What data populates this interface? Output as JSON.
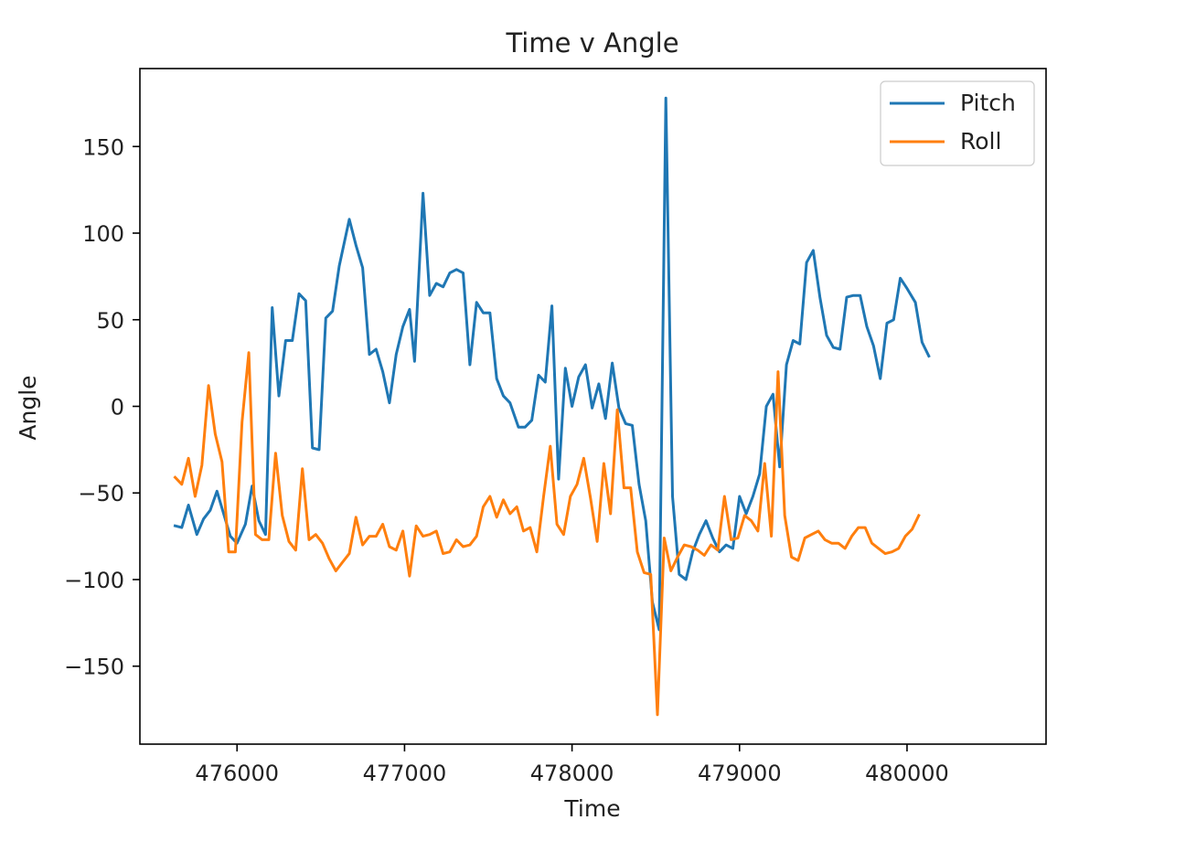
{
  "chart_data": {
    "type": "line",
    "title": "Time v Angle",
    "xlabel": "Time",
    "ylabel": "Angle",
    "xlim": [
      475420,
      480830
    ],
    "ylim": [
      -195,
      195
    ],
    "xticks": [
      476000,
      477000,
      478000,
      479000,
      480000
    ],
    "xtick_labels": [
      "476000",
      "477000",
      "478000",
      "479000",
      "480000"
    ],
    "yticks": [
      150,
      100,
      50,
      0,
      -50,
      -100,
      -150
    ],
    "ytick_labels": [
      "150",
      "100",
      "50",
      "0",
      "−50",
      "−100",
      "−150"
    ],
    "legend_position": "top-right",
    "series": [
      {
        "name": "Pitch",
        "color": "#1f77b4",
        "points": [
          [
            475630,
            -69
          ],
          [
            475670,
            -70
          ],
          [
            475710,
            -57
          ],
          [
            475760,
            -74
          ],
          [
            475800,
            -65
          ],
          [
            475840,
            -60
          ],
          [
            475880,
            -49
          ],
          [
            475920,
            -62
          ],
          [
            475960,
            -75
          ],
          [
            476000,
            -79
          ],
          [
            476050,
            -68
          ],
          [
            476090,
            -46
          ],
          [
            476130,
            -66
          ],
          [
            476170,
            -74
          ],
          [
            476210,
            57
          ],
          [
            476250,
            6
          ],
          [
            476290,
            38
          ],
          [
            476330,
            38
          ],
          [
            476370,
            65
          ],
          [
            476410,
            61
          ],
          [
            476450,
            -24
          ],
          [
            476490,
            -25
          ],
          [
            476530,
            51
          ],
          [
            476570,
            55
          ],
          [
            476610,
            81
          ],
          [
            476670,
            108
          ],
          [
            476710,
            93
          ],
          [
            476750,
            80
          ],
          [
            476790,
            30
          ],
          [
            476830,
            33
          ],
          [
            476870,
            20
          ],
          [
            476910,
            2
          ],
          [
            476950,
            30
          ],
          [
            476990,
            46
          ],
          [
            477030,
            56
          ],
          [
            477060,
            26
          ],
          [
            477110,
            123
          ],
          [
            477150,
            64
          ],
          [
            477190,
            71
          ],
          [
            477230,
            69
          ],
          [
            477270,
            77
          ],
          [
            477310,
            79
          ],
          [
            477350,
            77
          ],
          [
            477390,
            24
          ],
          [
            477430,
            60
          ],
          [
            477470,
            54
          ],
          [
            477510,
            54
          ],
          [
            477550,
            16
          ],
          [
            477590,
            6
          ],
          [
            477630,
            2
          ],
          [
            477680,
            -12
          ],
          [
            477720,
            -12
          ],
          [
            477760,
            -8
          ],
          [
            477800,
            18
          ],
          [
            477840,
            14
          ],
          [
            477880,
            58
          ],
          [
            477920,
            -42
          ],
          [
            477960,
            22
          ],
          [
            478000,
            0
          ],
          [
            478040,
            17
          ],
          [
            478080,
            24
          ],
          [
            478120,
            -1
          ],
          [
            478160,
            13
          ],
          [
            478200,
            -7
          ],
          [
            478240,
            25
          ],
          [
            478280,
            -1
          ],
          [
            478320,
            -10
          ],
          [
            478360,
            -11
          ],
          [
            478400,
            -45
          ],
          [
            478440,
            -66
          ],
          [
            478480,
            -113
          ],
          [
            478520,
            -129
          ],
          [
            478560,
            178
          ],
          [
            478600,
            -52
          ],
          [
            478640,
            -97
          ],
          [
            478680,
            -100
          ],
          [
            478720,
            -84
          ],
          [
            478760,
            -74
          ],
          [
            478800,
            -66
          ],
          [
            478840,
            -76
          ],
          [
            478880,
            -84
          ],
          [
            478920,
            -80
          ],
          [
            478960,
            -82
          ],
          [
            479000,
            -52
          ],
          [
            479040,
            -62
          ],
          [
            479080,
            -52
          ],
          [
            479120,
            -39
          ],
          [
            479160,
            0
          ],
          [
            479200,
            7
          ],
          [
            479240,
            -35
          ],
          [
            479280,
            24
          ],
          [
            479320,
            38
          ],
          [
            479360,
            36
          ],
          [
            479400,
            83
          ],
          [
            479440,
            90
          ],
          [
            479480,
            63
          ],
          [
            479520,
            41
          ],
          [
            479560,
            34
          ],
          [
            479600,
            33
          ],
          [
            479640,
            63
          ],
          [
            479680,
            64
          ],
          [
            479720,
            64
          ],
          [
            479760,
            46
          ],
          [
            479800,
            35
          ],
          [
            479840,
            16
          ],
          [
            479880,
            48
          ],
          [
            479920,
            50
          ],
          [
            479960,
            74
          ],
          [
            480000,
            68
          ],
          [
            480050,
            60
          ],
          [
            480090,
            37
          ],
          [
            480130,
            29
          ]
        ]
      },
      {
        "name": "Roll",
        "color": "#ff7f0e",
        "points": [
          [
            475630,
            -41
          ],
          [
            475670,
            -45
          ],
          [
            475710,
            -30
          ],
          [
            475750,
            -52
          ],
          [
            475790,
            -34
          ],
          [
            475830,
            12
          ],
          [
            475870,
            -16
          ],
          [
            475910,
            -32
          ],
          [
            475950,
            -84
          ],
          [
            475990,
            -84
          ],
          [
            476030,
            -9
          ],
          [
            476070,
            31
          ],
          [
            476110,
            -74
          ],
          [
            476150,
            -77
          ],
          [
            476190,
            -77
          ],
          [
            476230,
            -27
          ],
          [
            476270,
            -63
          ],
          [
            476310,
            -78
          ],
          [
            476350,
            -83
          ],
          [
            476390,
            -36
          ],
          [
            476430,
            -77
          ],
          [
            476470,
            -74
          ],
          [
            476510,
            -79
          ],
          [
            476550,
            -88
          ],
          [
            476590,
            -95
          ],
          [
            476630,
            -90
          ],
          [
            476670,
            -85
          ],
          [
            476710,
            -64
          ],
          [
            476750,
            -80
          ],
          [
            476790,
            -75
          ],
          [
            476830,
            -75
          ],
          [
            476870,
            -68
          ],
          [
            476910,
            -81
          ],
          [
            476950,
            -83
          ],
          [
            476990,
            -72
          ],
          [
            477030,
            -98
          ],
          [
            477070,
            -69
          ],
          [
            477110,
            -75
          ],
          [
            477150,
            -74
          ],
          [
            477190,
            -72
          ],
          [
            477230,
            -85
          ],
          [
            477270,
            -84
          ],
          [
            477310,
            -77
          ],
          [
            477350,
            -81
          ],
          [
            477390,
            -80
          ],
          [
            477430,
            -75
          ],
          [
            477470,
            -58
          ],
          [
            477510,
            -52
          ],
          [
            477550,
            -64
          ],
          [
            477590,
            -54
          ],
          [
            477630,
            -62
          ],
          [
            477670,
            -58
          ],
          [
            477710,
            -72
          ],
          [
            477750,
            -70
          ],
          [
            477790,
            -84
          ],
          [
            477830,
            -52
          ],
          [
            477870,
            -23
          ],
          [
            477910,
            -68
          ],
          [
            477950,
            -74
          ],
          [
            477990,
            -52
          ],
          [
            478030,
            -45
          ],
          [
            478070,
            -30
          ],
          [
            478110,
            -53
          ],
          [
            478150,
            -78
          ],
          [
            478190,
            -33
          ],
          [
            478230,
            -62
          ],
          [
            478270,
            -2
          ],
          [
            478310,
            -47
          ],
          [
            478350,
            -47
          ],
          [
            478390,
            -84
          ],
          [
            478430,
            -96
          ],
          [
            478470,
            -97
          ],
          [
            478510,
            -178
          ],
          [
            478550,
            -76
          ],
          [
            478590,
            -95
          ],
          [
            478630,
            -87
          ],
          [
            478670,
            -80
          ],
          [
            478710,
            -81
          ],
          [
            478750,
            -83
          ],
          [
            478790,
            -86
          ],
          [
            478830,
            -80
          ],
          [
            478870,
            -83
          ],
          [
            478910,
            -52
          ],
          [
            478950,
            -77
          ],
          [
            478990,
            -76
          ],
          [
            479030,
            -63
          ],
          [
            479070,
            -66
          ],
          [
            479110,
            -72
          ],
          [
            479150,
            -33
          ],
          [
            479190,
            -75
          ],
          [
            479230,
            20
          ],
          [
            479270,
            -63
          ],
          [
            479310,
            -87
          ],
          [
            479350,
            -89
          ],
          [
            479390,
            -76
          ],
          [
            479430,
            -74
          ],
          [
            479470,
            -72
          ],
          [
            479510,
            -77
          ],
          [
            479550,
            -79
          ],
          [
            479590,
            -79
          ],
          [
            479630,
            -82
          ],
          [
            479670,
            -75
          ],
          [
            479710,
            -70
          ],
          [
            479750,
            -70
          ],
          [
            479790,
            -79
          ],
          [
            479830,
            -82
          ],
          [
            479870,
            -85
          ],
          [
            479910,
            -84
          ],
          [
            479950,
            -82
          ],
          [
            479990,
            -75
          ],
          [
            480030,
            -71
          ],
          [
            480070,
            -63
          ]
        ]
      }
    ]
  }
}
